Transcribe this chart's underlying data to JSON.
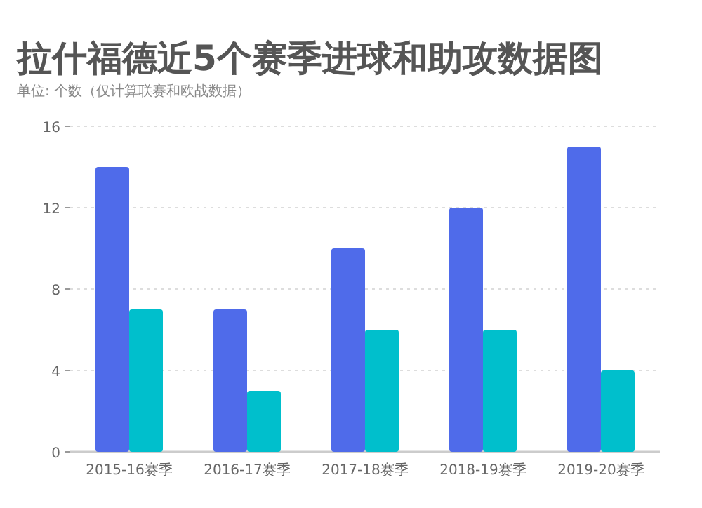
{
  "chart_data": {
    "type": "bar",
    "title": "拉什福德近5个赛季进球和助攻数据图",
    "subtitle": "单位: 个数（仅计算联赛和欧战数据）",
    "categories": [
      "2015-16赛季",
      "2016-17赛季",
      "2017-18赛季",
      "2018-19赛季",
      "2019-20赛季"
    ],
    "series": [
      {
        "color": "#4f6bea",
        "values": [
          14,
          7,
          10,
          12,
          15
        ]
      },
      {
        "color": "#00bfcc",
        "values": [
          7,
          3,
          6,
          6,
          4
        ]
      }
    ],
    "ylim": [
      0,
      16
    ],
    "yticks": [
      0,
      4,
      8,
      12,
      16
    ],
    "grid": "y"
  }
}
